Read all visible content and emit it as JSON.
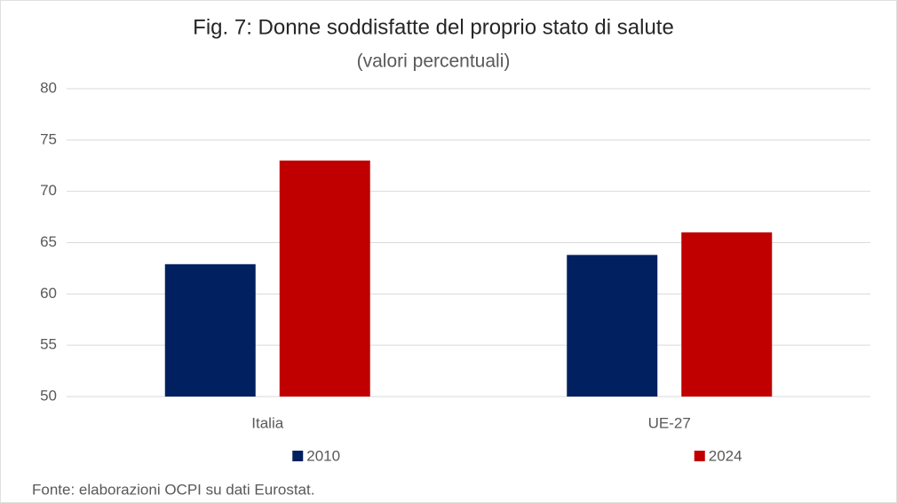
{
  "chart_data": {
    "type": "bar",
    "title": "Fig. 7: Donne soddisfatte del proprio stato di salute",
    "subtitle": "(valori percentuali)",
    "categories": [
      "Italia",
      "UE-27"
    ],
    "series": [
      {
        "name": "2010",
        "color": "#002060",
        "values": [
          62.9,
          63.8
        ]
      },
      {
        "name": "2024",
        "color": "#c00000",
        "values": [
          73,
          66
        ]
      }
    ],
    "ylim": [
      50,
      80
    ],
    "yticks": [
      50,
      55,
      60,
      65,
      70,
      75,
      80
    ],
    "grid": true,
    "legend": "bottom",
    "source": "Fonte: elaborazioni OCPI su dati Eurostat."
  }
}
